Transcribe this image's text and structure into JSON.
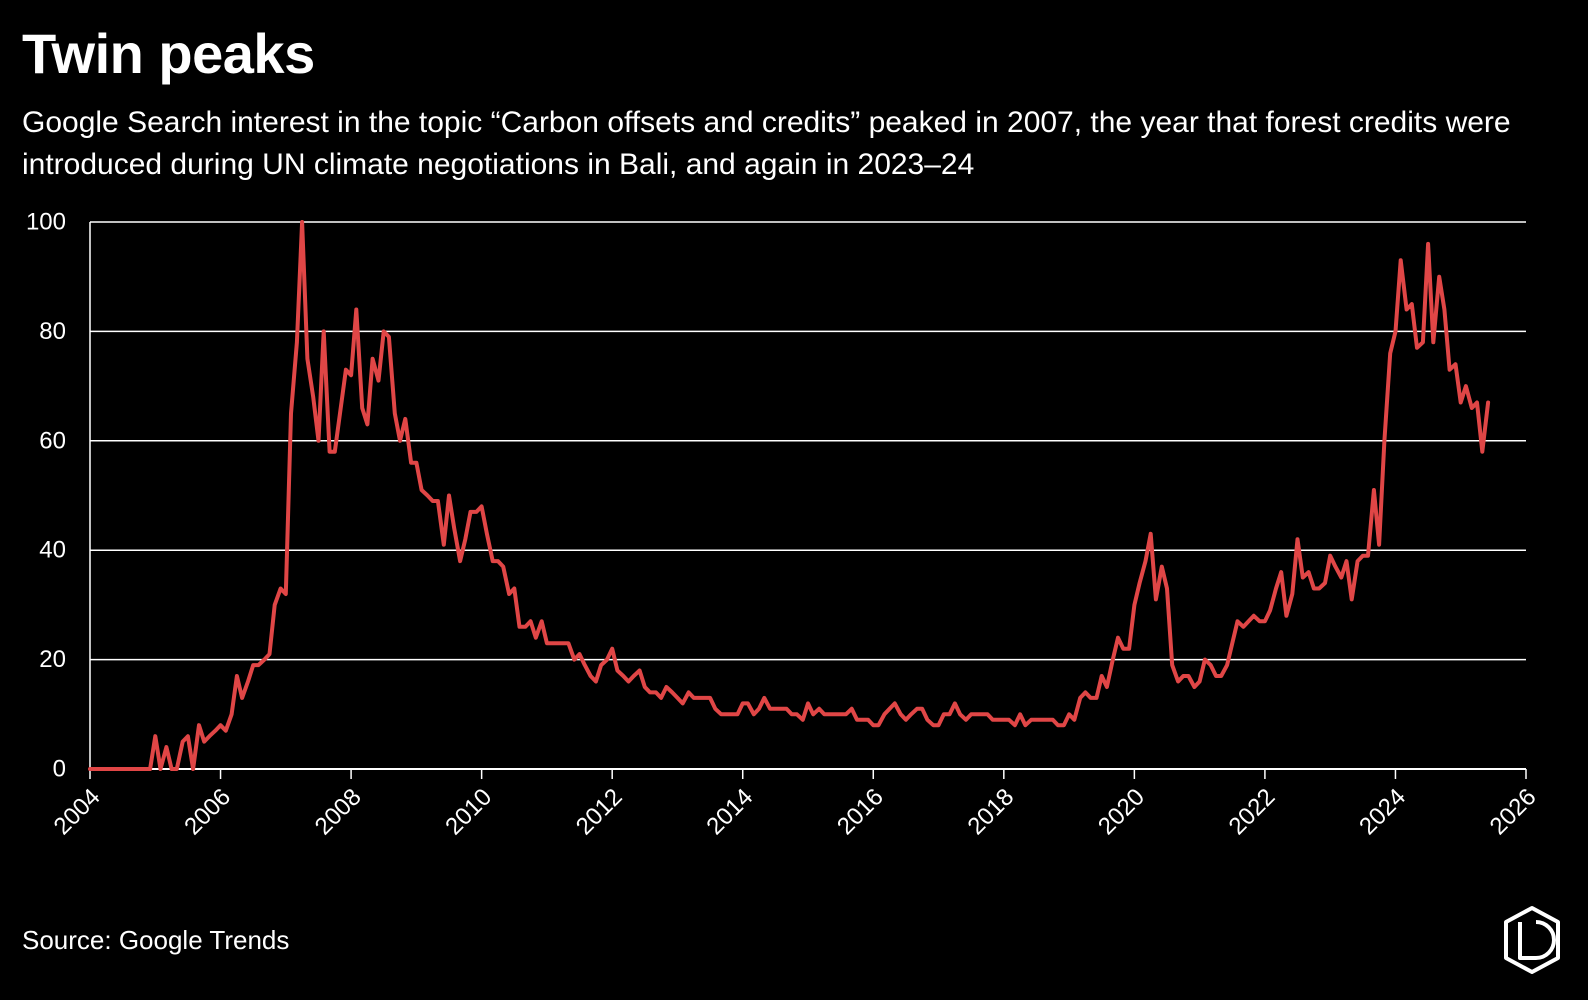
{
  "header": {
    "title": "Twin peaks",
    "subtitle": "Google Search interest in the topic “Carbon offsets and credits” peaked in 2007, the year that forest credits were introduced during UN climate negotiations in Bali, and again in 2023–24"
  },
  "footer": {
    "source": "Source: Google Trends",
    "logo_icon": "publisher-logo-icon"
  },
  "colors": {
    "background": "#000000",
    "text": "#ffffff",
    "grid": "#ffffff",
    "line": "#e04646"
  },
  "chart_data": {
    "type": "line",
    "title": "Twin peaks",
    "xlabel": "",
    "ylabel": "",
    "xlim": [
      2004,
      2026
    ],
    "ylim": [
      0,
      100
    ],
    "x_ticks": [
      "2004",
      "2006",
      "2008",
      "2010",
      "2012",
      "2014",
      "2016",
      "2018",
      "2020",
      "2022",
      "2024",
      "2026"
    ],
    "y_ticks": [
      "0",
      "20",
      "40",
      "60",
      "80",
      "100"
    ],
    "grid": true,
    "legend": "none",
    "series": [
      {
        "points": [
          [
            2004.0,
            0
          ],
          [
            2004.5,
            0
          ],
          [
            2004.92,
            0
          ],
          [
            2005.0,
            6
          ],
          [
            2005.08,
            0
          ],
          [
            2005.17,
            4
          ],
          [
            2005.25,
            0
          ],
          [
            2005.33,
            0
          ],
          [
            2005.42,
            5
          ],
          [
            2005.5,
            6
          ],
          [
            2005.58,
            0
          ],
          [
            2005.67,
            8
          ],
          [
            2005.75,
            5
          ],
          [
            2005.83,
            6
          ],
          [
            2005.92,
            7
          ],
          [
            2006.0,
            8
          ],
          [
            2006.08,
            7
          ],
          [
            2006.17,
            10
          ],
          [
            2006.25,
            17
          ],
          [
            2006.33,
            13
          ],
          [
            2006.42,
            16
          ],
          [
            2006.5,
            19
          ],
          [
            2006.58,
            19
          ],
          [
            2006.67,
            20
          ],
          [
            2006.75,
            21
          ],
          [
            2006.83,
            30
          ],
          [
            2006.92,
            33
          ],
          [
            2007.0,
            32
          ],
          [
            2007.08,
            65
          ],
          [
            2007.17,
            78
          ],
          [
            2007.25,
            100
          ],
          [
            2007.33,
            75
          ],
          [
            2007.42,
            68
          ],
          [
            2007.5,
            60
          ],
          [
            2007.58,
            80
          ],
          [
            2007.67,
            58
          ],
          [
            2007.75,
            58
          ],
          [
            2007.83,
            65
          ],
          [
            2007.92,
            73
          ],
          [
            2008.0,
            72
          ],
          [
            2008.08,
            84
          ],
          [
            2008.17,
            66
          ],
          [
            2008.25,
            63
          ],
          [
            2008.33,
            75
          ],
          [
            2008.42,
            71
          ],
          [
            2008.5,
            80
          ],
          [
            2008.58,
            79
          ],
          [
            2008.67,
            65
          ],
          [
            2008.75,
            60
          ],
          [
            2008.83,
            64
          ],
          [
            2008.92,
            56
          ],
          [
            2009.0,
            56
          ],
          [
            2009.08,
            51
          ],
          [
            2009.17,
            50
          ],
          [
            2009.25,
            49
          ],
          [
            2009.33,
            49
          ],
          [
            2009.42,
            41
          ],
          [
            2009.5,
            50
          ],
          [
            2009.58,
            44
          ],
          [
            2009.67,
            38
          ],
          [
            2009.75,
            42
          ],
          [
            2009.83,
            47
          ],
          [
            2009.92,
            47
          ],
          [
            2010.0,
            48
          ],
          [
            2010.08,
            43
          ],
          [
            2010.17,
            38
          ],
          [
            2010.25,
            38
          ],
          [
            2010.33,
            37
          ],
          [
            2010.42,
            32
          ],
          [
            2010.5,
            33
          ],
          [
            2010.58,
            26
          ],
          [
            2010.67,
            26
          ],
          [
            2010.75,
            27
          ],
          [
            2010.83,
            24
          ],
          [
            2010.92,
            27
          ],
          [
            2011.0,
            23
          ],
          [
            2011.17,
            23
          ],
          [
            2011.33,
            23
          ],
          [
            2011.42,
            20
          ],
          [
            2011.5,
            21
          ],
          [
            2011.58,
            19
          ],
          [
            2011.67,
            17
          ],
          [
            2011.75,
            16
          ],
          [
            2011.83,
            19
          ],
          [
            2011.92,
            20
          ],
          [
            2012.0,
            22
          ],
          [
            2012.08,
            18
          ],
          [
            2012.17,
            17
          ],
          [
            2012.25,
            16
          ],
          [
            2012.33,
            17
          ],
          [
            2012.42,
            18
          ],
          [
            2012.5,
            15
          ],
          [
            2012.58,
            14
          ],
          [
            2012.67,
            14
          ],
          [
            2012.75,
            13
          ],
          [
            2012.83,
            15
          ],
          [
            2012.92,
            14
          ],
          [
            2013.0,
            13
          ],
          [
            2013.08,
            12
          ],
          [
            2013.17,
            14
          ],
          [
            2013.25,
            13
          ],
          [
            2013.33,
            13
          ],
          [
            2013.5,
            13
          ],
          [
            2013.58,
            11
          ],
          [
            2013.67,
            10
          ],
          [
            2013.75,
            10
          ],
          [
            2013.92,
            10
          ],
          [
            2014.0,
            12
          ],
          [
            2014.08,
            12
          ],
          [
            2014.17,
            10
          ],
          [
            2014.25,
            11
          ],
          [
            2014.33,
            13
          ],
          [
            2014.42,
            11
          ],
          [
            2014.5,
            11
          ],
          [
            2014.67,
            11
          ],
          [
            2014.75,
            10
          ],
          [
            2014.83,
            10
          ],
          [
            2014.92,
            9
          ],
          [
            2015.0,
            12
          ],
          [
            2015.08,
            10
          ],
          [
            2015.17,
            11
          ],
          [
            2015.25,
            10
          ],
          [
            2015.42,
            10
          ],
          [
            2015.58,
            10
          ],
          [
            2015.67,
            11
          ],
          [
            2015.75,
            9
          ],
          [
            2015.83,
            9
          ],
          [
            2015.92,
            9
          ],
          [
            2016.0,
            8
          ],
          [
            2016.08,
            8
          ],
          [
            2016.17,
            10
          ],
          [
            2016.25,
            11
          ],
          [
            2016.33,
            12
          ],
          [
            2016.42,
            10
          ],
          [
            2016.5,
            9
          ],
          [
            2016.58,
            10
          ],
          [
            2016.67,
            11
          ],
          [
            2016.75,
            11
          ],
          [
            2016.83,
            9
          ],
          [
            2016.92,
            8
          ],
          [
            2017.0,
            8
          ],
          [
            2017.08,
            10
          ],
          [
            2017.17,
            10
          ],
          [
            2017.25,
            12
          ],
          [
            2017.33,
            10
          ],
          [
            2017.42,
            9
          ],
          [
            2017.5,
            10
          ],
          [
            2017.75,
            10
          ],
          [
            2017.83,
            9
          ],
          [
            2017.92,
            9
          ],
          [
            2018.08,
            9
          ],
          [
            2018.17,
            8
          ],
          [
            2018.25,
            10
          ],
          [
            2018.33,
            8
          ],
          [
            2018.42,
            9
          ],
          [
            2018.75,
            9
          ],
          [
            2018.83,
            8
          ],
          [
            2018.92,
            8
          ],
          [
            2019.0,
            10
          ],
          [
            2019.08,
            9
          ],
          [
            2019.17,
            13
          ],
          [
            2019.25,
            14
          ],
          [
            2019.33,
            13
          ],
          [
            2019.42,
            13
          ],
          [
            2019.5,
            17
          ],
          [
            2019.58,
            15
          ],
          [
            2019.67,
            20
          ],
          [
            2019.75,
            24
          ],
          [
            2019.83,
            22
          ],
          [
            2019.92,
            22
          ],
          [
            2020.0,
            30
          ],
          [
            2020.08,
            34
          ],
          [
            2020.17,
            38
          ],
          [
            2020.25,
            43
          ],
          [
            2020.33,
            31
          ],
          [
            2020.42,
            37
          ],
          [
            2020.5,
            33
          ],
          [
            2020.58,
            19
          ],
          [
            2020.67,
            16
          ],
          [
            2020.75,
            17
          ],
          [
            2020.83,
            17
          ],
          [
            2020.92,
            15
          ],
          [
            2021.0,
            16
          ],
          [
            2021.08,
            20
          ],
          [
            2021.17,
            19
          ],
          [
            2021.25,
            17
          ],
          [
            2021.33,
            17
          ],
          [
            2021.42,
            19
          ],
          [
            2021.5,
            23
          ],
          [
            2021.58,
            27
          ],
          [
            2021.67,
            26
          ],
          [
            2021.75,
            27
          ],
          [
            2021.83,
            28
          ],
          [
            2021.92,
            27
          ],
          [
            2022.0,
            27
          ],
          [
            2022.08,
            29
          ],
          [
            2022.17,
            33
          ],
          [
            2022.25,
            36
          ],
          [
            2022.33,
            28
          ],
          [
            2022.42,
            32
          ],
          [
            2022.5,
            42
          ],
          [
            2022.58,
            35
          ],
          [
            2022.67,
            36
          ],
          [
            2022.75,
            33
          ],
          [
            2022.83,
            33
          ],
          [
            2022.92,
            34
          ],
          [
            2023.0,
            39
          ],
          [
            2023.08,
            37
          ],
          [
            2023.17,
            35
          ],
          [
            2023.25,
            38
          ],
          [
            2023.33,
            31
          ],
          [
            2023.42,
            38
          ],
          [
            2023.5,
            39
          ],
          [
            2023.58,
            39
          ],
          [
            2023.67,
            51
          ],
          [
            2023.75,
            41
          ],
          [
            2023.83,
            60
          ],
          [
            2023.92,
            76
          ],
          [
            2024.0,
            80
          ],
          [
            2024.08,
            93
          ],
          [
            2024.17,
            84
          ],
          [
            2024.25,
            85
          ],
          [
            2024.33,
            77
          ],
          [
            2024.42,
            78
          ],
          [
            2024.5,
            96
          ],
          [
            2024.58,
            78
          ],
          [
            2024.67,
            90
          ],
          [
            2024.75,
            84
          ],
          [
            2024.83,
            73
          ],
          [
            2024.92,
            74
          ],
          [
            2025.0,
            67
          ],
          [
            2025.08,
            70
          ],
          [
            2025.17,
            66
          ],
          [
            2025.25,
            67
          ],
          [
            2025.33,
            58
          ],
          [
            2025.42,
            67
          ]
        ]
      }
    ]
  }
}
